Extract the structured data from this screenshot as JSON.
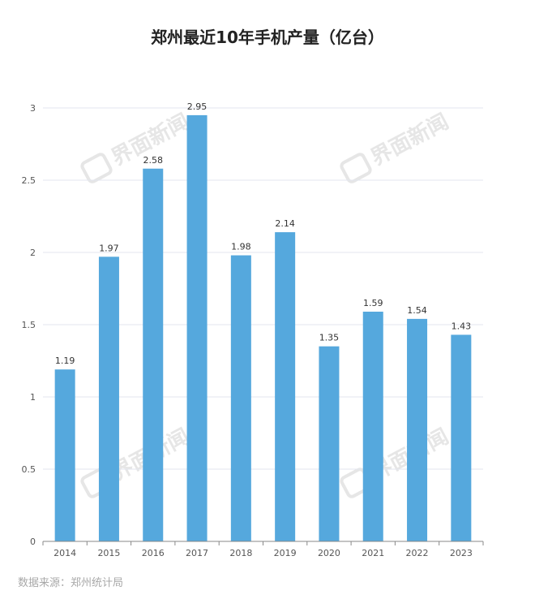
{
  "title": "郑州最近10年手机产量（亿台）",
  "source": "数据来源：郑州统计局",
  "watermark": "界面新闻",
  "colors": {
    "bar": "#55a8dd",
    "grid": "#e3e6ef",
    "axis": "#888888"
  },
  "chart_data": {
    "type": "bar",
    "title": "郑州最近10年手机产量（亿台）",
    "categories": [
      "2014",
      "2015",
      "2016",
      "2017",
      "2018",
      "2019",
      "2020",
      "2021",
      "2022",
      "2023"
    ],
    "values": [
      1.19,
      1.97,
      2.58,
      2.95,
      1.98,
      2.14,
      1.35,
      1.59,
      1.54,
      1.43
    ],
    "data_labels": [
      "1.19",
      "1.97",
      "2.58",
      "2.95",
      "1.98",
      "2.14",
      "1.35",
      "1.59",
      "1.54",
      "1.43"
    ],
    "yticks": [
      "0",
      "0.5",
      "1",
      "1.5",
      "2",
      "2.5",
      "3"
    ],
    "ylim": [
      0,
      3
    ],
    "grid": true
  }
}
